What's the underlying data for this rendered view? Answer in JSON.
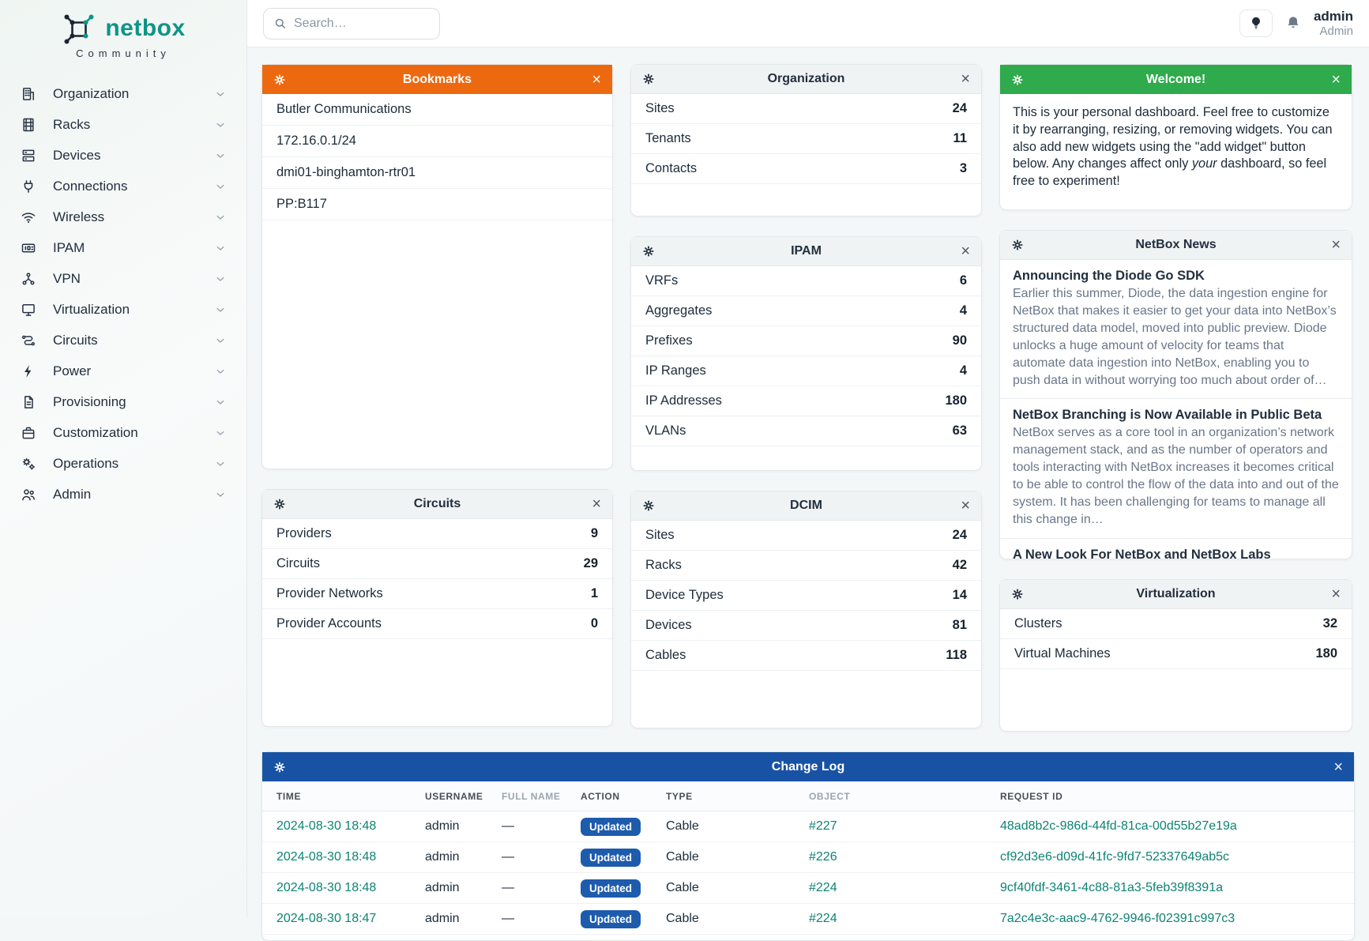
{
  "brand": {
    "name": "netbox",
    "subtitle": "Community"
  },
  "colors": {
    "brand_teal": "#0e9487",
    "logo_dark": "#1c2433",
    "header_orange": "#ed6910",
    "header_green": "#2faa4c",
    "header_blue": "#1852a4",
    "badge_blue": "#1d5bad",
    "link_teal": "#0d8373"
  },
  "topbar": {
    "search_placeholder": "Search…",
    "user": {
      "name": "admin",
      "role": "Admin"
    }
  },
  "sidebar": {
    "items": [
      {
        "label": "Organization",
        "icon": "building"
      },
      {
        "label": "Racks",
        "icon": "rack"
      },
      {
        "label": "Devices",
        "icon": "server"
      },
      {
        "label": "Connections",
        "icon": "plug"
      },
      {
        "label": "Wireless",
        "icon": "wifi"
      },
      {
        "label": "IPAM",
        "icon": "ip-card"
      },
      {
        "label": "VPN",
        "icon": "share-nodes"
      },
      {
        "label": "Virtualization",
        "icon": "monitor"
      },
      {
        "label": "Circuits",
        "icon": "circuit"
      },
      {
        "label": "Power",
        "icon": "bolt"
      },
      {
        "label": "Provisioning",
        "icon": "document"
      },
      {
        "label": "Customization",
        "icon": "briefcase"
      },
      {
        "label": "Operations",
        "icon": "gears"
      },
      {
        "label": "Admin",
        "icon": "users"
      }
    ]
  },
  "widgets": {
    "bookmarks": {
      "title": "Bookmarks",
      "items": [
        "Butler Communications",
        "172.16.0.1/24",
        "dmi01-binghamton-rtr01",
        "PP:B117"
      ]
    },
    "organization": {
      "title": "Organization",
      "rows": [
        {
          "label": "Sites",
          "value": "24"
        },
        {
          "label": "Tenants",
          "value": "11"
        },
        {
          "label": "Contacts",
          "value": "3"
        }
      ]
    },
    "welcome": {
      "title": "Welcome!",
      "text_parts": [
        {
          "text": "This is your personal dashboard. Feel free to customize it by rearranging, resizing, or removing widgets. You can also add new widgets using the \"add widget\" button below. Any changes affect only "
        },
        {
          "text": "your",
          "italic": true
        },
        {
          "text": " dashboard, so feel free to experiment!"
        }
      ]
    },
    "ipam": {
      "title": "IPAM",
      "rows": [
        {
          "label": "VRFs",
          "value": "6"
        },
        {
          "label": "Aggregates",
          "value": "4"
        },
        {
          "label": "Prefixes",
          "value": "90"
        },
        {
          "label": "IP Ranges",
          "value": "4"
        },
        {
          "label": "IP Addresses",
          "value": "180"
        },
        {
          "label": "VLANs",
          "value": "63"
        }
      ]
    },
    "news": {
      "title": "NetBox News",
      "stories": [
        {
          "title": "Announcing the Diode Go SDK",
          "body": "Earlier this summer, Diode, the data ingestion engine for NetBox that makes it easier to get your data into NetBox’s structured data model, moved into public preview. Diode unlocks a huge amount of velocity for teams that automate data ingestion into NetBox, enabling you to push data in without worrying too much about order of…"
        },
        {
          "title": "NetBox Branching is Now Available in Public Beta",
          "body": "NetBox serves as a core tool in an organization’s network management stack, and as the number of operators and tools interacting with NetBox increases it becomes critical to be able to control the flow of the data into and out of the system. It has been challenging for teams to manage all this change in…"
        },
        {
          "title": "A New Look For NetBox and NetBox Labs",
          "body": ""
        }
      ]
    },
    "circuits": {
      "title": "Circuits",
      "rows": [
        {
          "label": "Providers",
          "value": "9"
        },
        {
          "label": "Circuits",
          "value": "29"
        },
        {
          "label": "Provider Networks",
          "value": "1"
        },
        {
          "label": "Provider Accounts",
          "value": "0"
        }
      ]
    },
    "dcim": {
      "title": "DCIM",
      "rows": [
        {
          "label": "Sites",
          "value": "24"
        },
        {
          "label": "Racks",
          "value": "42"
        },
        {
          "label": "Device Types",
          "value": "14"
        },
        {
          "label": "Devices",
          "value": "81"
        },
        {
          "label": "Cables",
          "value": "118"
        }
      ]
    },
    "virtualization": {
      "title": "Virtualization",
      "rows": [
        {
          "label": "Clusters",
          "value": "32"
        },
        {
          "label": "Virtual Machines",
          "value": "180"
        }
      ]
    },
    "changelog": {
      "title": "Change Log",
      "columns": [
        {
          "label": "Time",
          "muted": false
        },
        {
          "label": "Username",
          "muted": false
        },
        {
          "label": "Full Name",
          "muted": true
        },
        {
          "label": "Action",
          "muted": false
        },
        {
          "label": "Type",
          "muted": false
        },
        {
          "label": "Object",
          "muted": true
        },
        {
          "label": "Request ID",
          "muted": false
        }
      ],
      "rows": [
        {
          "time": "2024-08-30 18:48",
          "username": "admin",
          "full_name": "—",
          "action": "Updated",
          "type": "Cable",
          "object": "#227",
          "request_id": "48ad8b2c-986d-44fd-81ca-00d55b27e19a"
        },
        {
          "time": "2024-08-30 18:48",
          "username": "admin",
          "full_name": "—",
          "action": "Updated",
          "type": "Cable",
          "object": "#226",
          "request_id": "cf92d3e6-d09d-41fc-9fd7-52337649ab5c"
        },
        {
          "time": "2024-08-30 18:48",
          "username": "admin",
          "full_name": "—",
          "action": "Updated",
          "type": "Cable",
          "object": "#224",
          "request_id": "9cf40fdf-3461-4c88-81a3-5feb39f8391a"
        },
        {
          "time": "2024-08-30 18:47",
          "username": "admin",
          "full_name": "—",
          "action": "Updated",
          "type": "Cable",
          "object": "#224",
          "request_id": "7a2c4e3c-aac9-4762-9946-f02391c997c3"
        }
      ]
    }
  }
}
